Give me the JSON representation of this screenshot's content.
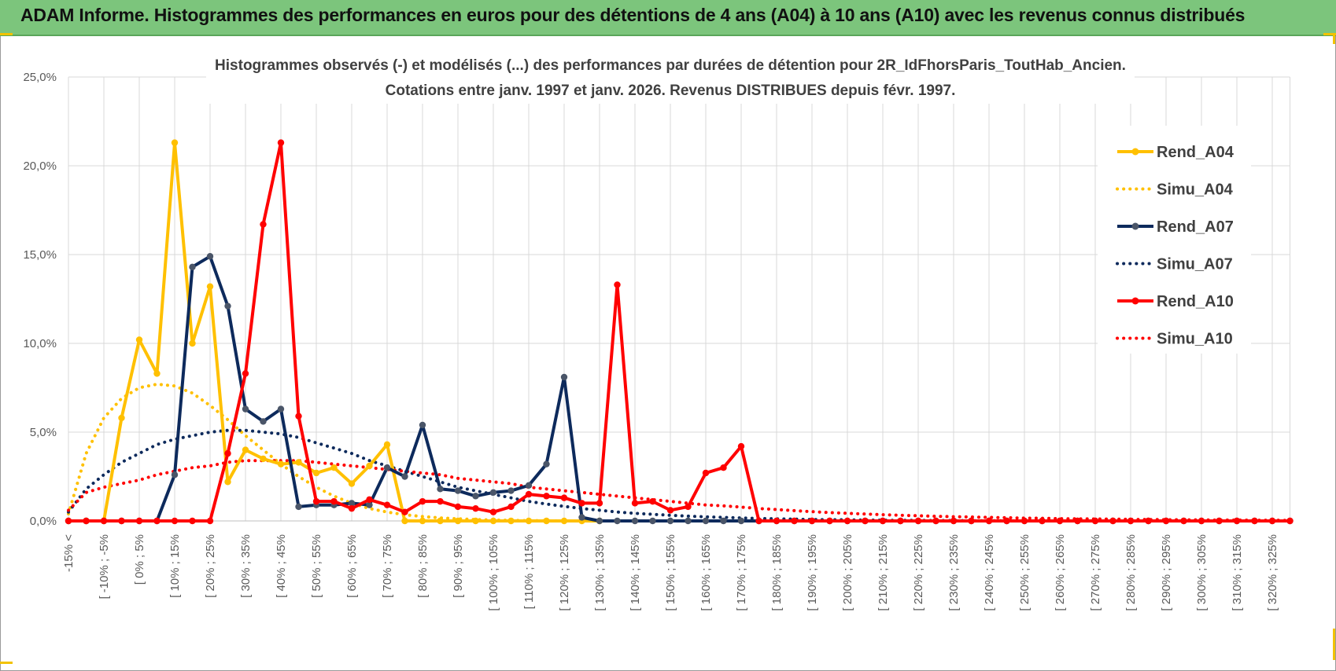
{
  "header": {
    "title": "ADAM Informe. Histogrammes des performances en euros pour des détentions de 4 ans (A04) à 10 ans (A10) avec les revenus connus distribués"
  },
  "chart_data": {
    "type": "line",
    "title": "Histogrammes observés (-) et modélisés (...) des performances par durées de détention pour 2R_IdFhorsParis_ToutHab_Ancien.",
    "subtitle": "Cotations entre janv. 1997 et janv. 2026. Revenus DISTRIBUES depuis févr. 1997.",
    "xlabel": "",
    "ylabel": "",
    "ylim": [
      0,
      25
    ],
    "y_ticks": [
      "0,0%",
      "5,0%",
      "10,0%",
      "15,0%",
      "20,0%",
      "25,0%"
    ],
    "grid": true,
    "legend_position": "right",
    "x_tick_labels": [
      "-15% <",
      "[ -10% ; -5%",
      "[ 0% ; 5%",
      "[ 10% ; 15%",
      "[ 20% ; 25%",
      "[ 30% ; 35%",
      "[ 40% ; 45%",
      "[ 50% ; 55%",
      "[ 60% ; 65%",
      "[ 70% ; 75%",
      "[ 80% ; 85%",
      "[ 90% ; 95%",
      "[ 100% ; 105%",
      "[ 110% ; 115%",
      "[ 120% ; 125%",
      "[ 130% ; 135%",
      "[ 140% ; 145%",
      "[ 150% ; 155%",
      "[ 160% ; 165%",
      "[ 170% ; 175%",
      "[ 180% ; 185%",
      "[ 190% ; 195%",
      "[ 200% ; 205%",
      "[ 210% ; 215%",
      "[ 220% ; 225%",
      "[ 230% ; 235%",
      "[ 240% ; 245%",
      "[ 250% ; 255%",
      "[ 260% ; 265%",
      "[ 270% ; 275%",
      "[ 280% ; 285%",
      "[ 290% ; 295%",
      "[ 300% ; 305%",
      "[ 310% ; 315%",
      "[ 320% ; 325%"
    ],
    "x_tick_indices": [
      0,
      2,
      4,
      6,
      8,
      10,
      12,
      14,
      16,
      18,
      20,
      22,
      24,
      26,
      28,
      30,
      32,
      34,
      36,
      38,
      40,
      42,
      44,
      46,
      48,
      50,
      52,
      54,
      56,
      58,
      60,
      62,
      64,
      66,
      68
    ],
    "n_bins": 70,
    "series": [
      {
        "name": "Rend_A04",
        "style": "solid",
        "color": "#ffc000",
        "markers": true,
        "values": [
          0,
          0,
          0,
          5.8,
          10.2,
          8.3,
          21.3,
          10.0,
          13.2,
          2.2,
          4.0,
          3.5,
          3.2,
          3.3,
          2.7,
          3.0,
          2.1,
          3.1,
          4.3,
          0,
          0,
          0,
          0,
          0,
          0,
          0,
          0,
          0,
          0,
          0,
          0
        ]
      },
      {
        "name": "Simu_A04",
        "style": "dotted",
        "color": "#ffc000",
        "markers": false,
        "values": [
          0.4,
          3.8,
          5.8,
          6.9,
          7.5,
          7.7,
          7.6,
          7.2,
          6.5,
          5.7,
          4.8,
          4.0,
          3.2,
          2.5,
          1.9,
          1.4,
          1.0,
          0.7,
          0.5,
          0.35,
          0.25,
          0.17,
          0.12,
          0.08,
          0.05,
          0.03,
          0.02,
          0.01,
          0,
          0,
          0
        ]
      },
      {
        "name": "Rend_A07",
        "style": "solid",
        "color": "#0d2a5c",
        "markers": true,
        "values": [
          0,
          0,
          0,
          0,
          0,
          0,
          2.6,
          14.3,
          14.9,
          12.1,
          6.3,
          5.6,
          6.3,
          0.8,
          0.9,
          0.9,
          1.0,
          0.9,
          3.0,
          2.5,
          5.4,
          1.8,
          1.7,
          1.4,
          1.6,
          1.7,
          2.0,
          3.2,
          8.1,
          0.2,
          0,
          0,
          0,
          0,
          0,
          0,
          0,
          0,
          0,
          0,
          0,
          0,
          0,
          0,
          0,
          0,
          0,
          0,
          0,
          0,
          0,
          0,
          0,
          0,
          0,
          0,
          0,
          0,
          0,
          0,
          0,
          0,
          0,
          0,
          0,
          0,
          0,
          0,
          0,
          0
        ]
      },
      {
        "name": "Simu_A07",
        "style": "dotted",
        "color": "#0d2a5c",
        "markers": false,
        "values": [
          0.5,
          1.8,
          2.6,
          3.3,
          3.8,
          4.3,
          4.6,
          4.8,
          5.0,
          5.1,
          5.1,
          5.0,
          4.9,
          4.7,
          4.4,
          4.1,
          3.8,
          3.4,
          3.1,
          2.8,
          2.5,
          2.2,
          1.9,
          1.7,
          1.5,
          1.3,
          1.1,
          0.95,
          0.82,
          0.7,
          0.6,
          0.5,
          0.43,
          0.37,
          0.32,
          0.27,
          0.23,
          0.2,
          0.17,
          0.14,
          0.12,
          0.1,
          0.08,
          0.07,
          0.06,
          0.05,
          0.04,
          0.03,
          0.03,
          0.02,
          0.02,
          0.01,
          0.01,
          0.01,
          0,
          0,
          0,
          0,
          0,
          0,
          0,
          0,
          0,
          0,
          0,
          0,
          0,
          0,
          0,
          0
        ]
      },
      {
        "name": "Rend_A10",
        "style": "solid",
        "color": "#ff0000",
        "markers": true,
        "values": [
          0,
          0,
          0,
          0,
          0,
          0,
          0,
          0,
          0,
          3.8,
          8.3,
          16.7,
          21.3,
          5.9,
          1.1,
          1.1,
          0.7,
          1.2,
          0.9,
          0.5,
          1.1,
          1.1,
          0.8,
          0.7,
          0.5,
          0.8,
          1.5,
          1.4,
          1.3,
          1.0,
          1.0,
          13.3,
          1.0,
          1.1,
          0.6,
          0.8,
          2.7,
          3.0,
          4.2,
          0,
          0,
          0,
          0,
          0,
          0,
          0,
          0,
          0,
          0,
          0,
          0,
          0,
          0,
          0,
          0,
          0,
          0,
          0,
          0,
          0,
          0,
          0,
          0,
          0,
          0,
          0,
          0,
          0,
          0,
          0
        ]
      },
      {
        "name": "Simu_A10",
        "style": "dotted",
        "color": "#ff0000",
        "markers": false,
        "values": [
          0.6,
          1.6,
          1.9,
          2.1,
          2.3,
          2.6,
          2.8,
          3.0,
          3.1,
          3.3,
          3.4,
          3.4,
          3.4,
          3.4,
          3.3,
          3.2,
          3.1,
          3.0,
          2.9,
          2.8,
          2.7,
          2.6,
          2.4,
          2.3,
          2.2,
          2.1,
          1.9,
          1.8,
          1.7,
          1.6,
          1.5,
          1.4,
          1.3,
          1.2,
          1.1,
          1.0,
          0.9,
          0.85,
          0.78,
          0.7,
          0.64,
          0.58,
          0.52,
          0.47,
          0.43,
          0.39,
          0.35,
          0.32,
          0.29,
          0.26,
          0.24,
          0.22,
          0.2,
          0.18,
          0.16,
          0.15,
          0.13,
          0.12,
          0.11,
          0.1,
          0.09,
          0.08,
          0.07,
          0.06,
          0.06,
          0.05,
          0.05,
          0.04,
          0.04,
          0.03
        ]
      }
    ]
  }
}
